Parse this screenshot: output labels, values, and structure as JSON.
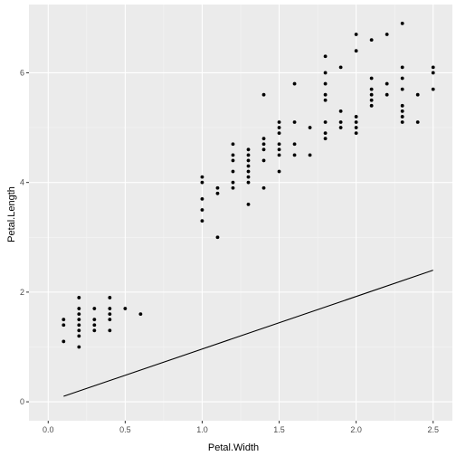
{
  "chart_data": {
    "type": "scatter",
    "xlabel": "Petal.Width",
    "ylabel": "Petal.Length",
    "xlim": [
      0.0,
      2.5
    ],
    "ylim": [
      0.0,
      6.9
    ],
    "x_ticks": [
      0.0,
      0.5,
      1.0,
      1.5,
      2.0,
      2.5
    ],
    "y_ticks": [
      0,
      2,
      4,
      6
    ],
    "x_tick_labels": [
      "0.0",
      "0.5",
      "1.0",
      "1.5",
      "2.0",
      "2.5"
    ],
    "y_tick_labels": [
      "0",
      "2",
      "4",
      "6"
    ],
    "grid": true,
    "legend": "none",
    "colors": {
      "panel": "#ebebeb",
      "grid_major": "#ffffff",
      "grid_minor": "#f5f5f5",
      "points": "#000000",
      "line": "#000000",
      "tick_text": "#4d4d4d",
      "tick_mark": "#333333"
    },
    "series": [
      {
        "type": "scatter",
        "points": [
          [
            0.1,
            1.1
          ],
          [
            0.1,
            1.4
          ],
          [
            0.1,
            1.5
          ],
          [
            0.2,
            1.0
          ],
          [
            0.2,
            1.2
          ],
          [
            0.2,
            1.3
          ],
          [
            0.2,
            1.4
          ],
          [
            0.2,
            1.5
          ],
          [
            0.2,
            1.6
          ],
          [
            0.2,
            1.7
          ],
          [
            0.2,
            1.9
          ],
          [
            0.3,
            1.3
          ],
          [
            0.3,
            1.4
          ],
          [
            0.3,
            1.5
          ],
          [
            0.3,
            1.7
          ],
          [
            0.4,
            1.3
          ],
          [
            0.4,
            1.5
          ],
          [
            0.4,
            1.6
          ],
          [
            0.4,
            1.7
          ],
          [
            0.4,
            1.9
          ],
          [
            0.5,
            1.7
          ],
          [
            0.6,
            1.6
          ],
          [
            1.0,
            3.3
          ],
          [
            1.0,
            3.5
          ],
          [
            1.0,
            3.7
          ],
          [
            1.0,
            4.0
          ],
          [
            1.0,
            4.1
          ],
          [
            1.1,
            3.0
          ],
          [
            1.1,
            3.8
          ],
          [
            1.1,
            3.9
          ],
          [
            1.2,
            3.9
          ],
          [
            1.2,
            4.0
          ],
          [
            1.2,
            4.2
          ],
          [
            1.2,
            4.4
          ],
          [
            1.2,
            4.5
          ],
          [
            1.2,
            4.7
          ],
          [
            1.3,
            3.6
          ],
          [
            1.3,
            4.0
          ],
          [
            1.3,
            4.1
          ],
          [
            1.3,
            4.2
          ],
          [
            1.3,
            4.3
          ],
          [
            1.3,
            4.4
          ],
          [
            1.3,
            4.5
          ],
          [
            1.3,
            4.6
          ],
          [
            1.4,
            3.9
          ],
          [
            1.4,
            4.4
          ],
          [
            1.4,
            4.6
          ],
          [
            1.4,
            4.7
          ],
          [
            1.4,
            4.8
          ],
          [
            1.4,
            5.6
          ],
          [
            1.5,
            4.2
          ],
          [
            1.5,
            4.5
          ],
          [
            1.5,
            4.6
          ],
          [
            1.5,
            4.7
          ],
          [
            1.5,
            4.9
          ],
          [
            1.5,
            5.0
          ],
          [
            1.5,
            5.1
          ],
          [
            1.6,
            4.5
          ],
          [
            1.6,
            4.7
          ],
          [
            1.6,
            5.1
          ],
          [
            1.6,
            5.8
          ],
          [
            1.7,
            4.5
          ],
          [
            1.7,
            5.0
          ],
          [
            1.8,
            4.8
          ],
          [
            1.8,
            4.9
          ],
          [
            1.8,
            5.1
          ],
          [
            1.8,
            5.5
          ],
          [
            1.8,
            5.6
          ],
          [
            1.8,
            5.8
          ],
          [
            1.8,
            6.0
          ],
          [
            1.8,
            6.3
          ],
          [
            1.9,
            5.0
          ],
          [
            1.9,
            5.1
          ],
          [
            1.9,
            5.3
          ],
          [
            1.9,
            6.1
          ],
          [
            2.0,
            4.9
          ],
          [
            2.0,
            5.0
          ],
          [
            2.0,
            5.1
          ],
          [
            2.0,
            5.2
          ],
          [
            2.0,
            6.4
          ],
          [
            2.0,
            6.7
          ],
          [
            2.1,
            5.4
          ],
          [
            2.1,
            5.5
          ],
          [
            2.1,
            5.6
          ],
          [
            2.1,
            5.7
          ],
          [
            2.1,
            5.9
          ],
          [
            2.1,
            6.6
          ],
          [
            2.2,
            5.6
          ],
          [
            2.2,
            5.8
          ],
          [
            2.2,
            6.7
          ],
          [
            2.3,
            5.1
          ],
          [
            2.3,
            5.2
          ],
          [
            2.3,
            5.3
          ],
          [
            2.3,
            5.4
          ],
          [
            2.3,
            5.7
          ],
          [
            2.3,
            5.9
          ],
          [
            2.3,
            6.1
          ],
          [
            2.3,
            6.9
          ],
          [
            2.4,
            5.1
          ],
          [
            2.4,
            5.6
          ],
          [
            2.5,
            5.7
          ],
          [
            2.5,
            6.0
          ],
          [
            2.5,
            6.1
          ]
        ]
      },
      {
        "type": "line",
        "points": [
          [
            0.1,
            0.1
          ],
          [
            2.5,
            2.4
          ]
        ]
      }
    ]
  }
}
